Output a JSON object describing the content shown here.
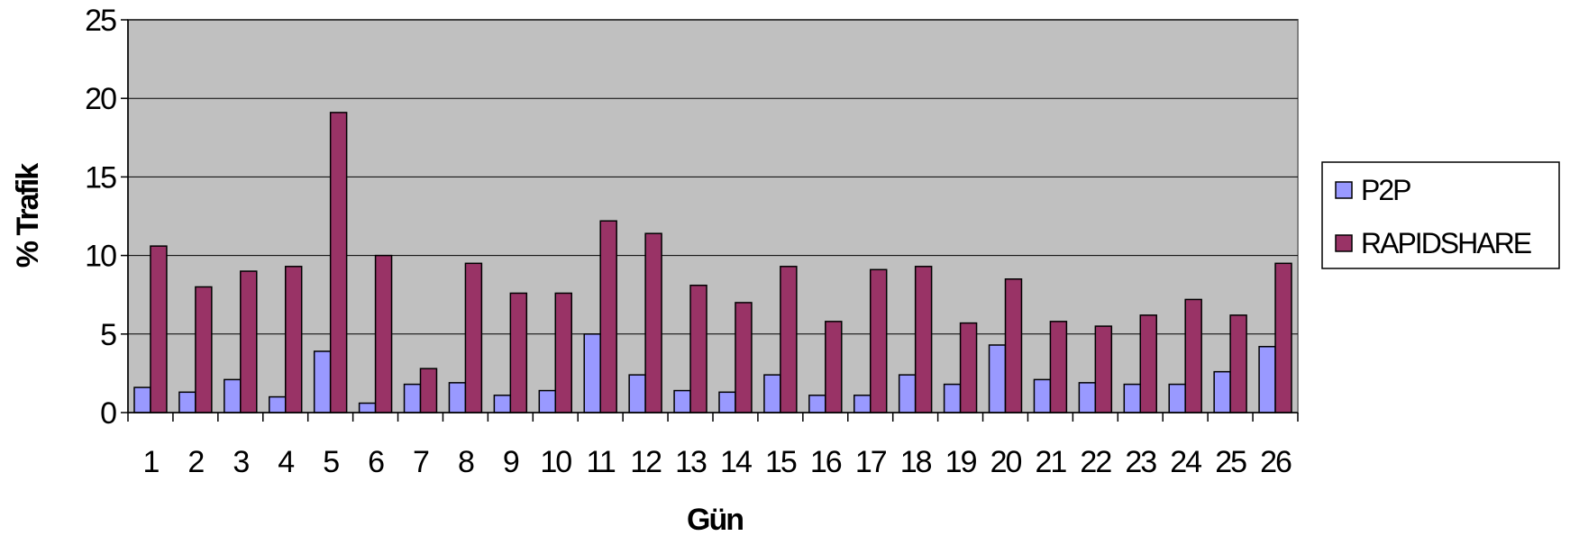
{
  "chart_data": {
    "type": "bar",
    "title": "",
    "xlabel": "Gün",
    "ylabel": "% Trafik",
    "ylim": [
      0,
      25
    ],
    "yticks": [
      0,
      5,
      10,
      15,
      20,
      25
    ],
    "grid": true,
    "legend_position": "right",
    "categories": [
      "1",
      "2",
      "3",
      "4",
      "5",
      "6",
      "7",
      "8",
      "9",
      "10",
      "11",
      "12",
      "13",
      "14",
      "15",
      "16",
      "17",
      "18",
      "19",
      "20",
      "21",
      "22",
      "23",
      "24",
      "25",
      "26"
    ],
    "series": [
      {
        "name": "P2P",
        "color": "#9999FF",
        "values": [
          1.6,
          1.3,
          2.1,
          1.0,
          3.9,
          0.6,
          1.8,
          1.9,
          1.1,
          1.4,
          5.0,
          2.4,
          1.4,
          1.3,
          2.4,
          1.1,
          1.1,
          2.4,
          1.8,
          4.3,
          2.1,
          1.9,
          1.8,
          1.8,
          2.6,
          4.2
        ]
      },
      {
        "name": "RAPIDSHARE",
        "color": "#993366",
        "values": [
          10.6,
          8.0,
          9.0,
          9.3,
          19.1,
          10.0,
          2.8,
          9.5,
          7.6,
          7.6,
          12.2,
          11.4,
          8.1,
          7.0,
          9.3,
          5.8,
          9.1,
          9.3,
          5.7,
          8.5,
          5.8,
          5.5,
          6.2,
          7.2,
          6.2,
          9.5
        ]
      }
    ]
  },
  "colors": {
    "plot_background": "#C0C0C0",
    "gridline": "#000000"
  }
}
